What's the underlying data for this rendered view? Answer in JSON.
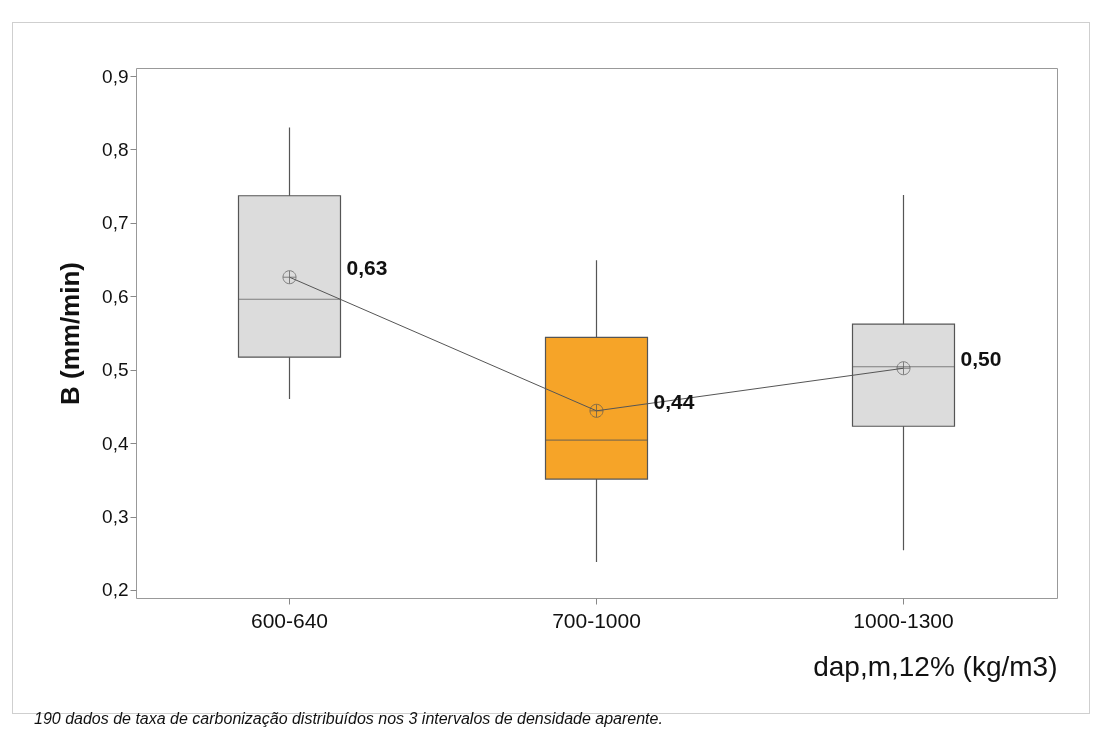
{
  "chart_data": {
    "type": "box",
    "xlabel": "dap,m,12% (kg/m3)",
    "ylabel": "B (mm/min)",
    "categories": [
      "600-640",
      "700-1000",
      "1000-1300"
    ],
    "boxes": [
      {
        "low": 0.46,
        "q1": 0.517,
        "median": 0.596,
        "q3": 0.737,
        "high": 0.83,
        "mean": 0.626
      },
      {
        "low": 0.238,
        "q1": 0.351,
        "median": 0.404,
        "q3": 0.544,
        "high": 0.649,
        "mean": 0.444
      },
      {
        "low": 0.254,
        "q1": 0.423,
        "median": 0.504,
        "q3": 0.562,
        "high": 0.738,
        "mean": 0.502
      }
    ],
    "colors": [
      "#dcdcdc",
      "#f6a428",
      "#dcdcdc"
    ],
    "series": [
      {
        "type": "line",
        "color": "#555555",
        "values": [
          0.626,
          0.444,
          0.502
        ]
      }
    ],
    "ylim": [
      0.189,
      0.911
    ],
    "yticks": [
      {
        "value": 0.2,
        "label": "0,2"
      },
      {
        "value": 0.3,
        "label": "0,3"
      },
      {
        "value": 0.4,
        "label": "0,4"
      },
      {
        "value": 0.5,
        "label": "0,5"
      },
      {
        "value": 0.6,
        "label": "0,6"
      },
      {
        "value": 0.7,
        "label": "0,7"
      },
      {
        "value": 0.8,
        "label": "0,8"
      },
      {
        "value": 0.9,
        "label": "0,9"
      }
    ],
    "grid": false,
    "legend": false,
    "marker": "none",
    "annotations": [
      {
        "text": "0,63",
        "x": "600-640",
        "y": 0.626
      },
      {
        "text": "0,44",
        "x": "700-1000",
        "y": 0.444
      },
      {
        "text": "0,50",
        "x": "1000-1300",
        "y": 0.502
      },
      "190 dados de taxa de carbonização distribuídos nos 3 intervalos de densidade aparente."
    ]
  }
}
